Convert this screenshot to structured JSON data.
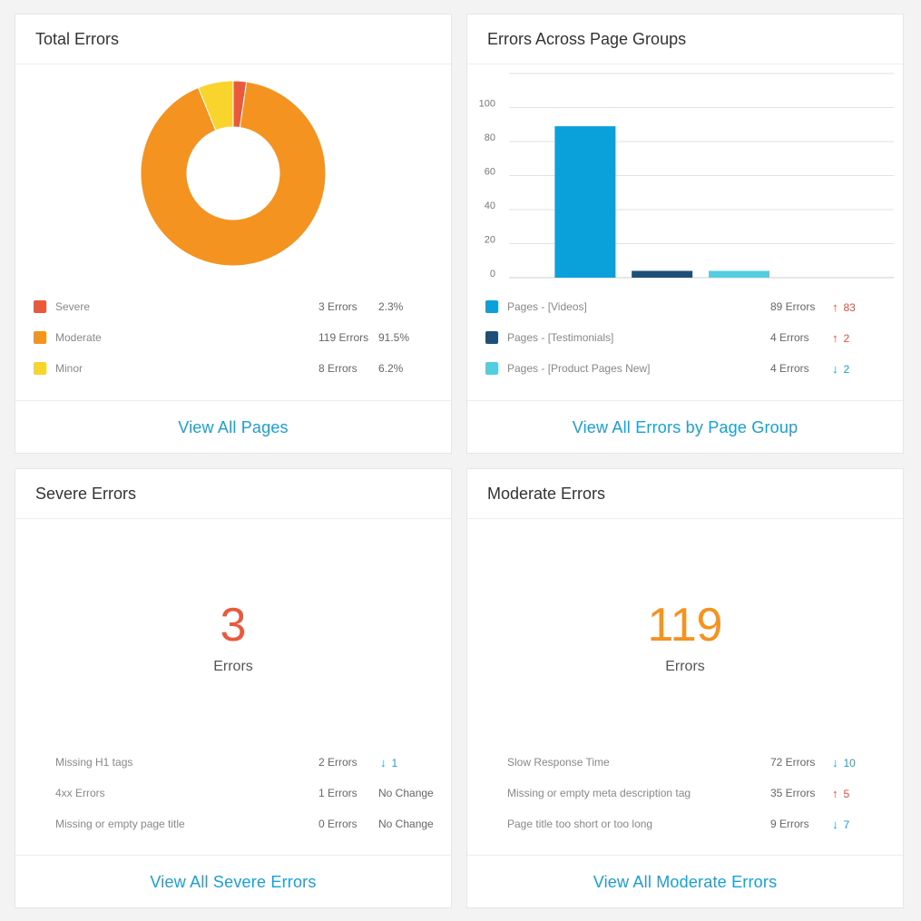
{
  "total_errors": {
    "title": "Total Errors",
    "chart_data": {
      "type": "pie",
      "labels": [
        "Severe",
        "Moderate",
        "Minor"
      ],
      "values": [
        3,
        119,
        8
      ],
      "colors": [
        "#e9593b",
        "#f59321",
        "#f8d42d"
      ]
    },
    "legend": [
      {
        "name": "Severe",
        "count": "3 Errors",
        "pct": "2.3%",
        "color": "#e9593b"
      },
      {
        "name": "Moderate",
        "count": "119 Errors",
        "pct": "91.5%",
        "color": "#f59321"
      },
      {
        "name": "Minor",
        "count": "8 Errors",
        "pct": "6.2%",
        "color": "#f8d42d"
      }
    ],
    "link": "View All Pages"
  },
  "page_groups": {
    "title": "Errors Across Page Groups",
    "chart_data": {
      "type": "bar",
      "categories": [
        "Pages - [Videos]",
        "Pages - [Testimonials]",
        "Pages - [Product Pages New]"
      ],
      "values": [
        89,
        4,
        4
      ],
      "colors": [
        "#0aa0d9",
        "#1e4f78",
        "#55cde0"
      ],
      "ylim": [
        0,
        120
      ],
      "yticks": [
        "0",
        "20",
        "40",
        "60",
        "80",
        "100"
      ],
      "grid": true
    },
    "legend": [
      {
        "name": "Pages - [Videos]",
        "count": "89 Errors",
        "trend": "83",
        "dir": "up",
        "color": "#0aa0d9"
      },
      {
        "name": "Pages - [Testimonials]",
        "count": "4 Errors",
        "trend": "2",
        "dir": "up",
        "color": "#1e4f78"
      },
      {
        "name": "Pages - [Product Pages New]",
        "count": "4 Errors",
        "trend": "2",
        "dir": "down",
        "color": "#55cde0"
      }
    ],
    "link": "View All Errors by Page Group"
  },
  "severe": {
    "title": "Severe Errors",
    "value": "3",
    "label": "Errors",
    "color": "#e9593b",
    "rows": [
      {
        "name": "Missing H1 tags",
        "count": "2 Errors",
        "trend": "1",
        "dir": "down"
      },
      {
        "name": "4xx Errors",
        "count": "1 Errors",
        "trend": "No Change",
        "dir": "none"
      },
      {
        "name": "Missing or empty page title",
        "count": "0 Errors",
        "trend": "No Change",
        "dir": "none"
      }
    ],
    "link": "View All Severe Errors"
  },
  "moderate": {
    "title": "Moderate Errors",
    "value": "119",
    "label": "Errors",
    "color": "#f59321",
    "rows": [
      {
        "name": "Slow Response Time",
        "count": "72 Errors",
        "trend": "10",
        "dir": "down"
      },
      {
        "name": "Missing or empty meta description tag",
        "count": "35 Errors",
        "trend": "5",
        "dir": "up"
      },
      {
        "name": "Page title too short or too long",
        "count": "9 Errors",
        "trend": "7",
        "dir": "down"
      }
    ],
    "link": "View All Moderate Errors"
  }
}
